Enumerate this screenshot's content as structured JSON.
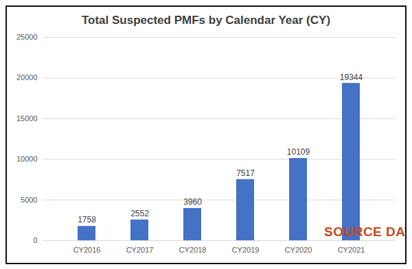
{
  "chart_data": {
    "type": "bar",
    "title": "Total Suspected PMFs by Calendar Year (CY)",
    "categories": [
      "CY2016",
      "CY2017",
      "CY2018",
      "CY2019",
      "CY2020",
      "CY2021"
    ],
    "values": [
      1758,
      2552,
      3960,
      7517,
      10109,
      19344
    ],
    "color": "#4472c4",
    "ylim": [
      0,
      25000
    ],
    "yticks": [
      0,
      5000,
      10000,
      15000,
      20000,
      25000
    ],
    "grid": true,
    "data_labels": true,
    "annotations": [
      "SOURCE DATA?"
    ]
  }
}
